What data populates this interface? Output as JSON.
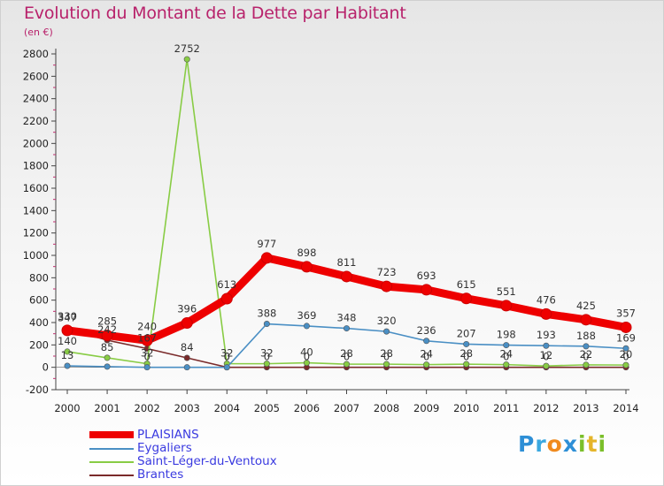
{
  "title": "Evolution du Montant de la Dette par Habitant",
  "subtitle": "(en €)",
  "logo": [
    {
      "ch": "P",
      "color": "#2e8fd6"
    },
    {
      "ch": "r",
      "color": "#3aa8e0"
    },
    {
      "ch": "o",
      "color": "#f08a1e"
    },
    {
      "ch": "x",
      "color": "#2e8fd6"
    },
    {
      "ch": "i",
      "color": "#7bbf2a"
    },
    {
      "ch": "t",
      "color": "#e5b52a"
    },
    {
      "ch": "i",
      "color": "#7bbf2a"
    }
  ],
  "chart_data": {
    "type": "line",
    "title": "Evolution du Montant de la Dette par Habitant",
    "subtitle": "(en €)",
    "x": [
      "2000",
      "2001",
      "2002",
      "2003",
      "2004",
      "2005",
      "2006",
      "2007",
      "2008",
      "2009",
      "2010",
      "2011",
      "2012",
      "2013",
      "2014"
    ],
    "ylim": [
      -200,
      2800
    ],
    "yticks": [
      -200,
      0,
      200,
      400,
      600,
      800,
      1000,
      1200,
      1400,
      1600,
      1800,
      2000,
      2200,
      2400,
      2600,
      2800
    ],
    "grid": false,
    "legend_position": "bottom-left",
    "series": [
      {
        "name": "PLAISIANS",
        "color": "#ee0000",
        "stroke": "thick",
        "values": [
          330,
          285,
          240,
          396,
          613,
          977,
          898,
          811,
          723,
          693,
          615,
          551,
          476,
          425,
          357
        ],
        "labels": [
          "330",
          "285",
          "240",
          "396",
          "613",
          "977",
          "898",
          "811",
          "723",
          "693",
          "615",
          "551",
          "476",
          "425",
          "357"
        ]
      },
      {
        "name": "Eygaliers",
        "color": "#4a8fc4",
        "stroke": "thin",
        "values": [
          13,
          6,
          0,
          0,
          0,
          388,
          369,
          348,
          320,
          236,
          207,
          198,
          193,
          188,
          169
        ],
        "labels": [
          "13",
          "",
          "0",
          "",
          "0",
          "388",
          "369",
          "348",
          "320",
          "236",
          "207",
          "198",
          "193",
          "188",
          "169"
        ]
      },
      {
        "name": "Saint-Léger-du-Ventoux",
        "color": "#88cc44",
        "stroke": "thin",
        "values": [
          140,
          85,
          32,
          2752,
          32,
          32,
          40,
          28,
          28,
          24,
          28,
          24,
          12,
          22,
          20
        ],
        "labels": [
          "140",
          "85",
          "32",
          "2752",
          "32",
          "32",
          "40",
          "28",
          "28",
          "24",
          "28",
          "24",
          "12",
          "22",
          "20"
        ]
      },
      {
        "name": "Brantes",
        "color": "#7a2a2a",
        "stroke": "thin",
        "values": [
          347,
          242,
          167,
          84,
          0,
          0,
          0,
          0,
          0,
          0,
          0,
          0,
          0,
          0,
          0
        ],
        "labels": [
          "347",
          "242",
          "167",
          "84",
          "0",
          "0",
          "0",
          "0",
          "0",
          "0",
          "0",
          "0",
          "0",
          "0",
          "0"
        ]
      }
    ]
  }
}
